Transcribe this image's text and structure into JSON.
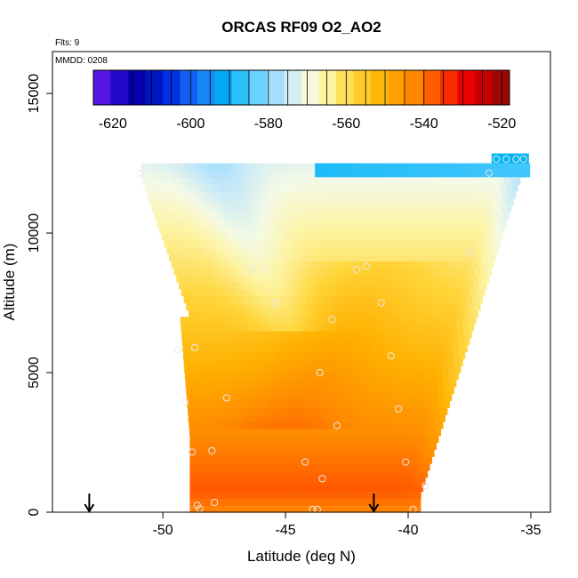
{
  "chart_data": {
    "type": "heatmap",
    "title": "ORCAS RF09 O2_AO2",
    "flights_note": "Flts: 9",
    "date_note": "MMDD: 0208",
    "xlabel": "Latitude (deg N)",
    "ylabel": "Altitude (m)",
    "xlim": [
      -54.5,
      -34.2
    ],
    "ylim": [
      0,
      16500
    ],
    "x_ticks": [
      -50,
      -45,
      -40,
      -35
    ],
    "x_tick_labels": [
      "-50",
      "-45",
      "-40",
      "-35"
    ],
    "y_ticks": [
      0,
      5000,
      10000,
      15000
    ],
    "y_tick_labels": [
      "0",
      "5000",
      "10000",
      "15000"
    ],
    "colorbar": {
      "range": [
        -625,
        -518
      ],
      "ticks": [
        -620,
        -600,
        -580,
        -560,
        -540,
        -520
      ],
      "tick_labels": [
        "-620",
        "-600",
        "-580",
        "-560",
        "-540",
        "-520"
      ],
      "stops": [
        {
          "v": -625,
          "color": "#7a1df0"
        },
        {
          "v": -620,
          "color": "#2a0ad0"
        },
        {
          "v": -613,
          "color": "#0000a8"
        },
        {
          "v": -605,
          "color": "#0030e0"
        },
        {
          "v": -598,
          "color": "#1e78f5"
        },
        {
          "v": -590,
          "color": "#00b4f5"
        },
        {
          "v": -583,
          "color": "#66d0ff"
        },
        {
          "v": -576,
          "color": "#bfe6fa"
        },
        {
          "v": -570,
          "color": "#f5fae6"
        },
        {
          "v": -565,
          "color": "#fdf3a0"
        },
        {
          "v": -558,
          "color": "#ffd53a"
        },
        {
          "v": -550,
          "color": "#ffb000"
        },
        {
          "v": -543,
          "color": "#ff8a00"
        },
        {
          "v": -536,
          "color": "#ff4a00"
        },
        {
          "v": -530,
          "color": "#f00000"
        },
        {
          "v": -524,
          "color": "#c00000"
        },
        {
          "v": -518,
          "color": "#8a0a0a"
        }
      ]
    },
    "field_note": "Interpolated O2 curtain; values ~ -575 (light blue) near top to ~ -530 (red) near surface",
    "profile_markers": [
      {
        "x": -53.0,
        "y": 0
      },
      {
        "x": -41.4,
        "y": 0
      }
    ],
    "observation_points": [
      {
        "x": -50.9,
        "y": 12150
      },
      {
        "x": -36.7,
        "y": 12150
      },
      {
        "x": -36.4,
        "y": 12650
      },
      {
        "x": -36.0,
        "y": 12650
      },
      {
        "x": -35.6,
        "y": 12650
      },
      {
        "x": -35.3,
        "y": 12650
      },
      {
        "x": -46.4,
        "y": 8700
      },
      {
        "x": -45.9,
        "y": 8700
      },
      {
        "x": -42.1,
        "y": 8700
      },
      {
        "x": -41.7,
        "y": 8800
      },
      {
        "x": -37.5,
        "y": 9300
      },
      {
        "x": -45.4,
        "y": 7500
      },
      {
        "x": -41.1,
        "y": 7500
      },
      {
        "x": -43.1,
        "y": 6900
      },
      {
        "x": -49.4,
        "y": 5800
      },
      {
        "x": -48.7,
        "y": 5900
      },
      {
        "x": -40.7,
        "y": 5600
      },
      {
        "x": -43.6,
        "y": 5000
      },
      {
        "x": -40.4,
        "y": 3700
      },
      {
        "x": -49.1,
        "y": 3950
      },
      {
        "x": -47.4,
        "y": 4100
      },
      {
        "x": -42.9,
        "y": 3100
      },
      {
        "x": -48.8,
        "y": 2150
      },
      {
        "x": -48.0,
        "y": 2200
      },
      {
        "x": -44.2,
        "y": 1800
      },
      {
        "x": -40.1,
        "y": 1800
      },
      {
        "x": -43.5,
        "y": 1200
      },
      {
        "x": -39.3,
        "y": 950
      },
      {
        "x": -47.9,
        "y": 350
      },
      {
        "x": -48.6,
        "y": 250
      },
      {
        "x": -48.5,
        "y": 120
      },
      {
        "x": -43.9,
        "y": 100
      },
      {
        "x": -43.7,
        "y": 100
      },
      {
        "x": -39.8,
        "y": 100
      }
    ]
  }
}
